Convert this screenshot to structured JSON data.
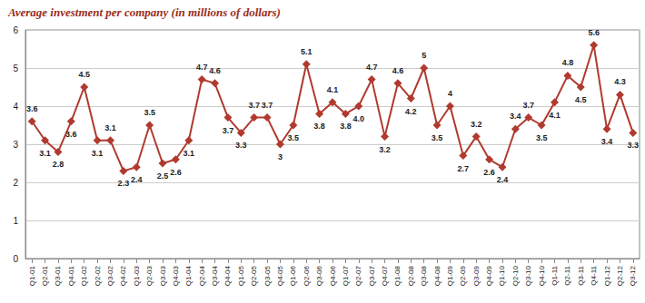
{
  "chart_data": {
    "type": "line",
    "title": "Average investment per company (in millions of dollars)",
    "categories": [
      "Q1-01",
      "Q2-01",
      "Q3-01",
      "Q4-01",
      "Q1-02",
      "Q2-02",
      "Q3-02",
      "Q4-02",
      "Q1-03",
      "Q2-03",
      "Q3-03",
      "Q4-03",
      "Q1-04",
      "Q2-04",
      "Q3-04",
      "Q4-04",
      "Q1-05",
      "Q2-05",
      "Q3-05",
      "Q4-05",
      "Q1-06",
      "Q2-06",
      "Q3-06",
      "Q4-06",
      "Q1-07",
      "Q2-07",
      "Q3-07",
      "Q4-07",
      "Q1-08",
      "Q2-08",
      "Q3-08",
      "Q4-08",
      "Q1-09",
      "Q2-09",
      "Q3-09",
      "Q4-09",
      "Q1-10",
      "Q2-10",
      "Q3-10",
      "Q4-10",
      "Q1-11",
      "Q2-11",
      "Q3-11",
      "Q4-11",
      "Q1-12",
      "Q2-12",
      "Q3-12"
    ],
    "values": [
      3.6,
      3.1,
      2.8,
      3.6,
      4.5,
      3.1,
      3.1,
      2.3,
      2.4,
      3.5,
      2.5,
      2.6,
      3.1,
      4.7,
      4.6,
      3.7,
      3.3,
      3.7,
      3.7,
      3,
      3.5,
      5.1,
      3.8,
      4.1,
      3.8,
      4.0,
      4.7,
      3.2,
      4.6,
      4.2,
      5,
      3.5,
      4,
      2.7,
      3.2,
      2.6,
      2.4,
      3.4,
      3.7,
      3.5,
      4.1,
      4.8,
      4.5,
      5.6,
      3.4,
      4.3,
      3.3
    ],
    "value_labels": [
      "3.6",
      "3.1",
      "2.8",
      "3.6",
      "4.5",
      "3.1",
      "3.1",
      "2.3",
      "2.4",
      "3.5",
      "2.5",
      "2.6",
      "3.1",
      "4.7",
      "4.6",
      "3.7",
      "3.3",
      "3.7",
      "3.7",
      "3",
      "3.5",
      "5.1",
      "3.8",
      "4.1",
      "3.8",
      "4.0",
      "4.7",
      "3.2",
      "4.6",
      "4.2",
      "5",
      "3.5",
      "4",
      "2.7",
      "3.2",
      "2.6",
      "2.4",
      "3.4",
      "3.7",
      "3.5",
      "4.1",
      "4.8",
      "4.5",
      "5.6",
      "3.4",
      "4.3",
      "3.3"
    ],
    "color": "#b03a2e",
    "ylim": [
      0,
      6
    ],
    "yticks": [
      0,
      1,
      2,
      3,
      4,
      5,
      6
    ],
    "grid": true,
    "data_labels": true,
    "marker": "diamond",
    "line_style": "solid"
  }
}
